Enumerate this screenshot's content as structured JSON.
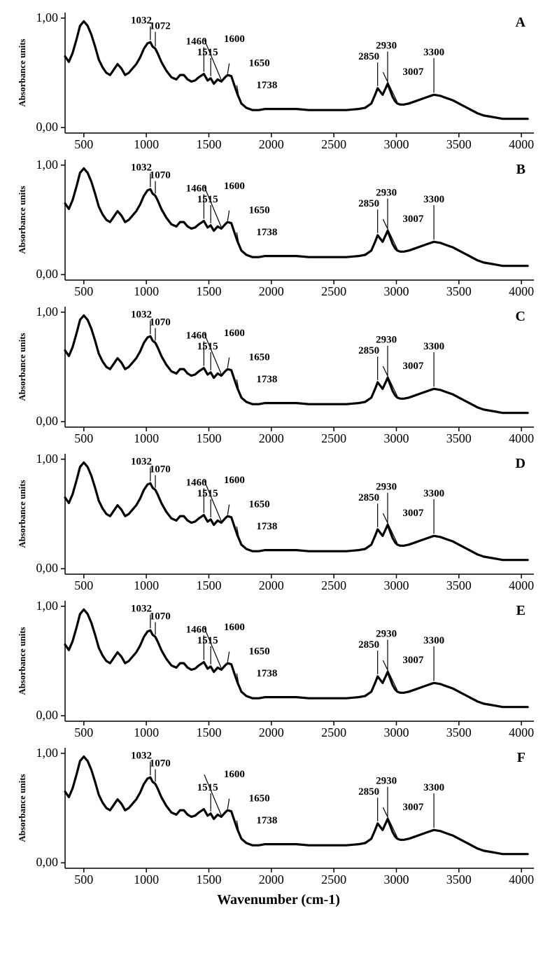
{
  "global": {
    "xaxis_title": "Wavenumber (cm-1)",
    "yaxis_title": "Absorbance units",
    "xlim": [
      350,
      4100
    ],
    "ylim": [
      -0.05,
      1.05
    ],
    "xticks": [
      500,
      1000,
      1500,
      2000,
      2500,
      3000,
      3500,
      4000
    ],
    "yticks": [
      {
        "v": 0.0,
        "label": "0,00"
      },
      {
        "v": 1.0,
        "label": "1,00"
      }
    ],
    "tick_fontsize": 18,
    "tick_fontweight": "normal",
    "label_fontsize": 13,
    "label_fontweight": "bold",
    "panel_label_fontsize": 20,
    "panel_label_fontweight": "bold",
    "line_color": "#000000",
    "line_width": 3.2,
    "axis_color": "#000000",
    "axis_width": 1.5,
    "background": "#ffffff",
    "peak_label_fontsize": 15,
    "peak_label_fontweight": "bold"
  },
  "spectrum_points": [
    [
      350,
      0.65
    ],
    [
      380,
      0.6
    ],
    [
      410,
      0.68
    ],
    [
      440,
      0.8
    ],
    [
      470,
      0.93
    ],
    [
      500,
      0.97
    ],
    [
      530,
      0.93
    ],
    [
      560,
      0.85
    ],
    [
      590,
      0.74
    ],
    [
      620,
      0.62
    ],
    [
      650,
      0.55
    ],
    [
      680,
      0.5
    ],
    [
      710,
      0.48
    ],
    [
      740,
      0.53
    ],
    [
      770,
      0.58
    ],
    [
      800,
      0.54
    ],
    [
      830,
      0.48
    ],
    [
      860,
      0.5
    ],
    [
      890,
      0.54
    ],
    [
      920,
      0.58
    ],
    [
      950,
      0.64
    ],
    [
      980,
      0.72
    ],
    [
      1010,
      0.77
    ],
    [
      1032,
      0.78
    ],
    [
      1050,
      0.74
    ],
    [
      1072,
      0.72
    ],
    [
      1090,
      0.68
    ],
    [
      1120,
      0.6
    ],
    [
      1160,
      0.52
    ],
    [
      1200,
      0.46
    ],
    [
      1240,
      0.44
    ],
    [
      1270,
      0.48
    ],
    [
      1300,
      0.48
    ],
    [
      1330,
      0.44
    ],
    [
      1360,
      0.42
    ],
    [
      1390,
      0.43
    ],
    [
      1420,
      0.46
    ],
    [
      1460,
      0.49
    ],
    [
      1490,
      0.43
    ],
    [
      1515,
      0.45
    ],
    [
      1540,
      0.4
    ],
    [
      1570,
      0.44
    ],
    [
      1600,
      0.42
    ],
    [
      1630,
      0.46
    ],
    [
      1650,
      0.48
    ],
    [
      1680,
      0.47
    ],
    [
      1700,
      0.4
    ],
    [
      1730,
      0.3
    ],
    [
      1738,
      0.28
    ],
    [
      1760,
      0.22
    ],
    [
      1800,
      0.18
    ],
    [
      1850,
      0.16
    ],
    [
      1900,
      0.16
    ],
    [
      1950,
      0.17
    ],
    [
      2000,
      0.17
    ],
    [
      2100,
      0.17
    ],
    [
      2200,
      0.17
    ],
    [
      2300,
      0.16
    ],
    [
      2400,
      0.16
    ],
    [
      2500,
      0.16
    ],
    [
      2600,
      0.16
    ],
    [
      2700,
      0.17
    ],
    [
      2750,
      0.18
    ],
    [
      2800,
      0.22
    ],
    [
      2830,
      0.3
    ],
    [
      2850,
      0.36
    ],
    [
      2870,
      0.33
    ],
    [
      2890,
      0.3
    ],
    [
      2910,
      0.35
    ],
    [
      2930,
      0.4
    ],
    [
      2950,
      0.34
    ],
    [
      2970,
      0.28
    ],
    [
      2990,
      0.24
    ],
    [
      3007,
      0.22
    ],
    [
      3030,
      0.21
    ],
    [
      3060,
      0.21
    ],
    [
      3100,
      0.22
    ],
    [
      3150,
      0.24
    ],
    [
      3200,
      0.26
    ],
    [
      3250,
      0.28
    ],
    [
      3300,
      0.3
    ],
    [
      3350,
      0.29
    ],
    [
      3400,
      0.27
    ],
    [
      3450,
      0.25
    ],
    [
      3500,
      0.22
    ],
    [
      3550,
      0.19
    ],
    [
      3600,
      0.16
    ],
    [
      3650,
      0.13
    ],
    [
      3700,
      0.11
    ],
    [
      3750,
      0.1
    ],
    [
      3800,
      0.09
    ],
    [
      3850,
      0.08
    ],
    [
      3900,
      0.08
    ],
    [
      3950,
      0.08
    ],
    [
      4000,
      0.08
    ],
    [
      4050,
      0.08
    ]
  ],
  "panels": [
    {
      "id": "A",
      "peak_labels": [
        {
          "text": "1032",
          "x": 1032,
          "lx": 960,
          "ly": 0.95,
          "tick": true
        },
        {
          "text": "1072",
          "x": 1072,
          "lx": 1110,
          "ly": 0.9,
          "tick": true
        },
        {
          "text": "1460",
          "x": 1460,
          "lx": 1400,
          "ly": 0.76,
          "tick": true
        },
        {
          "text": "1515",
          "x": 1515,
          "lx": 1490,
          "ly": 0.66,
          "tick": true
        },
        {
          "text": "1600",
          "x": 1600,
          "lx": 1620,
          "ly": 0.78,
          "line": true
        },
        {
          "text": "1650",
          "x": 1650,
          "lx": 1820,
          "ly": 0.56,
          "line": true
        },
        {
          "text": "1738",
          "x": 1738,
          "lx": 1880,
          "ly": 0.36,
          "line": true
        },
        {
          "text": "2850",
          "x": 2850,
          "lx": 2780,
          "ly": 0.62,
          "tick": true
        },
        {
          "text": "2930",
          "x": 2930,
          "lx": 2920,
          "ly": 0.72,
          "tick": true
        },
        {
          "text": "3007",
          "x": 3007,
          "lx": 3050,
          "ly": 0.48,
          "line": true
        },
        {
          "text": "3300",
          "x": 3300,
          "lx": 3300,
          "ly": 0.66,
          "tick": true
        }
      ]
    },
    {
      "id": "B",
      "peak_labels": [
        {
          "text": "1032",
          "x": 1032,
          "lx": 960,
          "ly": 0.95,
          "tick": true
        },
        {
          "text": "1070",
          "x": 1072,
          "lx": 1110,
          "ly": 0.88,
          "tick": true
        },
        {
          "text": "1460",
          "x": 1460,
          "lx": 1400,
          "ly": 0.76,
          "tick": true
        },
        {
          "text": "1515",
          "x": 1515,
          "lx": 1490,
          "ly": 0.66,
          "tick": true
        },
        {
          "text": "1600",
          "x": 1600,
          "lx": 1620,
          "ly": 0.78,
          "line": true
        },
        {
          "text": "1650",
          "x": 1650,
          "lx": 1820,
          "ly": 0.56,
          "line": true
        },
        {
          "text": "1738",
          "x": 1738,
          "lx": 1880,
          "ly": 0.36,
          "line": true
        },
        {
          "text": "2850",
          "x": 2850,
          "lx": 2780,
          "ly": 0.62,
          "tick": true
        },
        {
          "text": "2930",
          "x": 2930,
          "lx": 2920,
          "ly": 0.72,
          "tick": true
        },
        {
          "text": "3007",
          "x": 3007,
          "lx": 3050,
          "ly": 0.48,
          "line": true
        },
        {
          "text": "3300",
          "x": 3300,
          "lx": 3300,
          "ly": 0.66,
          "tick": true
        }
      ]
    },
    {
      "id": "C",
      "peak_labels": [
        {
          "text": "1032",
          "x": 1032,
          "lx": 960,
          "ly": 0.95,
          "tick": true
        },
        {
          "text": "1070",
          "x": 1072,
          "lx": 1110,
          "ly": 0.88,
          "tick": true
        },
        {
          "text": "1460",
          "x": 1460,
          "lx": 1400,
          "ly": 0.76,
          "tick": true
        },
        {
          "text": "1515",
          "x": 1515,
          "lx": 1490,
          "ly": 0.66,
          "tick": true
        },
        {
          "text": "1600",
          "x": 1600,
          "lx": 1620,
          "ly": 0.78,
          "line": true
        },
        {
          "text": "1650",
          "x": 1650,
          "lx": 1820,
          "ly": 0.56,
          "line": true
        },
        {
          "text": "1738",
          "x": 1738,
          "lx": 1880,
          "ly": 0.36,
          "line": true
        },
        {
          "text": "2850",
          "x": 2850,
          "lx": 2780,
          "ly": 0.62,
          "tick": true
        },
        {
          "text": "2930",
          "x": 2930,
          "lx": 2920,
          "ly": 0.72,
          "tick": true
        },
        {
          "text": "3007",
          "x": 3007,
          "lx": 3050,
          "ly": 0.48,
          "line": true
        },
        {
          "text": "3300",
          "x": 3300,
          "lx": 3300,
          "ly": 0.66,
          "tick": true
        }
      ]
    },
    {
      "id": "D",
      "peak_labels": [
        {
          "text": "1032",
          "x": 1032,
          "lx": 960,
          "ly": 0.95,
          "tick": true
        },
        {
          "text": "1070",
          "x": 1072,
          "lx": 1110,
          "ly": 0.88,
          "tick": true
        },
        {
          "text": "1460",
          "x": 1460,
          "lx": 1400,
          "ly": 0.76,
          "tick": true
        },
        {
          "text": "1515",
          "x": 1515,
          "lx": 1490,
          "ly": 0.66,
          "tick": true
        },
        {
          "text": "1600",
          "x": 1600,
          "lx": 1620,
          "ly": 0.78,
          "line": true
        },
        {
          "text": "1650",
          "x": 1650,
          "lx": 1820,
          "ly": 0.56,
          "line": true
        },
        {
          "text": "1738",
          "x": 1738,
          "lx": 1880,
          "ly": 0.36,
          "line": true
        },
        {
          "text": "2850",
          "x": 2850,
          "lx": 2780,
          "ly": 0.62,
          "tick": true
        },
        {
          "text": "2930",
          "x": 2930,
          "lx": 2920,
          "ly": 0.72,
          "tick": true
        },
        {
          "text": "3007",
          "x": 3007,
          "lx": 3050,
          "ly": 0.48,
          "line": true
        },
        {
          "text": "3300",
          "x": 3300,
          "lx": 3300,
          "ly": 0.66,
          "tick": true
        }
      ]
    },
    {
      "id": "E",
      "peak_labels": [
        {
          "text": "1032",
          "x": 1032,
          "lx": 960,
          "ly": 0.95,
          "tick": true
        },
        {
          "text": "1070",
          "x": 1072,
          "lx": 1110,
          "ly": 0.88,
          "tick": true
        },
        {
          "text": "1460",
          "x": 1460,
          "lx": 1400,
          "ly": 0.76,
          "tick": true
        },
        {
          "text": "1515",
          "x": 1515,
          "lx": 1490,
          "ly": 0.66,
          "tick": true
        },
        {
          "text": "1600",
          "x": 1600,
          "lx": 1620,
          "ly": 0.78,
          "line": true
        },
        {
          "text": "1650",
          "x": 1650,
          "lx": 1820,
          "ly": 0.56,
          "line": true
        },
        {
          "text": "1738",
          "x": 1738,
          "lx": 1880,
          "ly": 0.36,
          "line": true
        },
        {
          "text": "2850",
          "x": 2850,
          "lx": 2780,
          "ly": 0.62,
          "tick": true
        },
        {
          "text": "2930",
          "x": 2930,
          "lx": 2920,
          "ly": 0.72,
          "tick": true
        },
        {
          "text": "3007",
          "x": 3007,
          "lx": 3050,
          "ly": 0.48,
          "line": true
        },
        {
          "text": "3300",
          "x": 3300,
          "lx": 3300,
          "ly": 0.66,
          "tick": true
        }
      ]
    },
    {
      "id": "F",
      "peak_labels": [
        {
          "text": "1032",
          "x": 1032,
          "lx": 960,
          "ly": 0.95,
          "tick": true
        },
        {
          "text": "1070",
          "x": 1072,
          "lx": 1110,
          "ly": 0.88,
          "tick": true
        },
        {
          "text": "1515",
          "x": 1515,
          "lx": 1490,
          "ly": 0.66,
          "tick": true
        },
        {
          "text": "1600",
          "x": 1600,
          "lx": 1620,
          "ly": 0.78,
          "line": true
        },
        {
          "text": "1650",
          "x": 1650,
          "lx": 1820,
          "ly": 0.56,
          "line": true
        },
        {
          "text": "1738",
          "x": 1738,
          "lx": 1880,
          "ly": 0.36,
          "line": true
        },
        {
          "text": "2850",
          "x": 2850,
          "lx": 2780,
          "ly": 0.62,
          "tick": true
        },
        {
          "text": "2930",
          "x": 2930,
          "lx": 2920,
          "ly": 0.72,
          "tick": true
        },
        {
          "text": "3007",
          "x": 3007,
          "lx": 3050,
          "ly": 0.48,
          "line": true
        },
        {
          "text": "3300",
          "x": 3300,
          "lx": 3300,
          "ly": 0.66,
          "tick": true
        }
      ]
    }
  ]
}
